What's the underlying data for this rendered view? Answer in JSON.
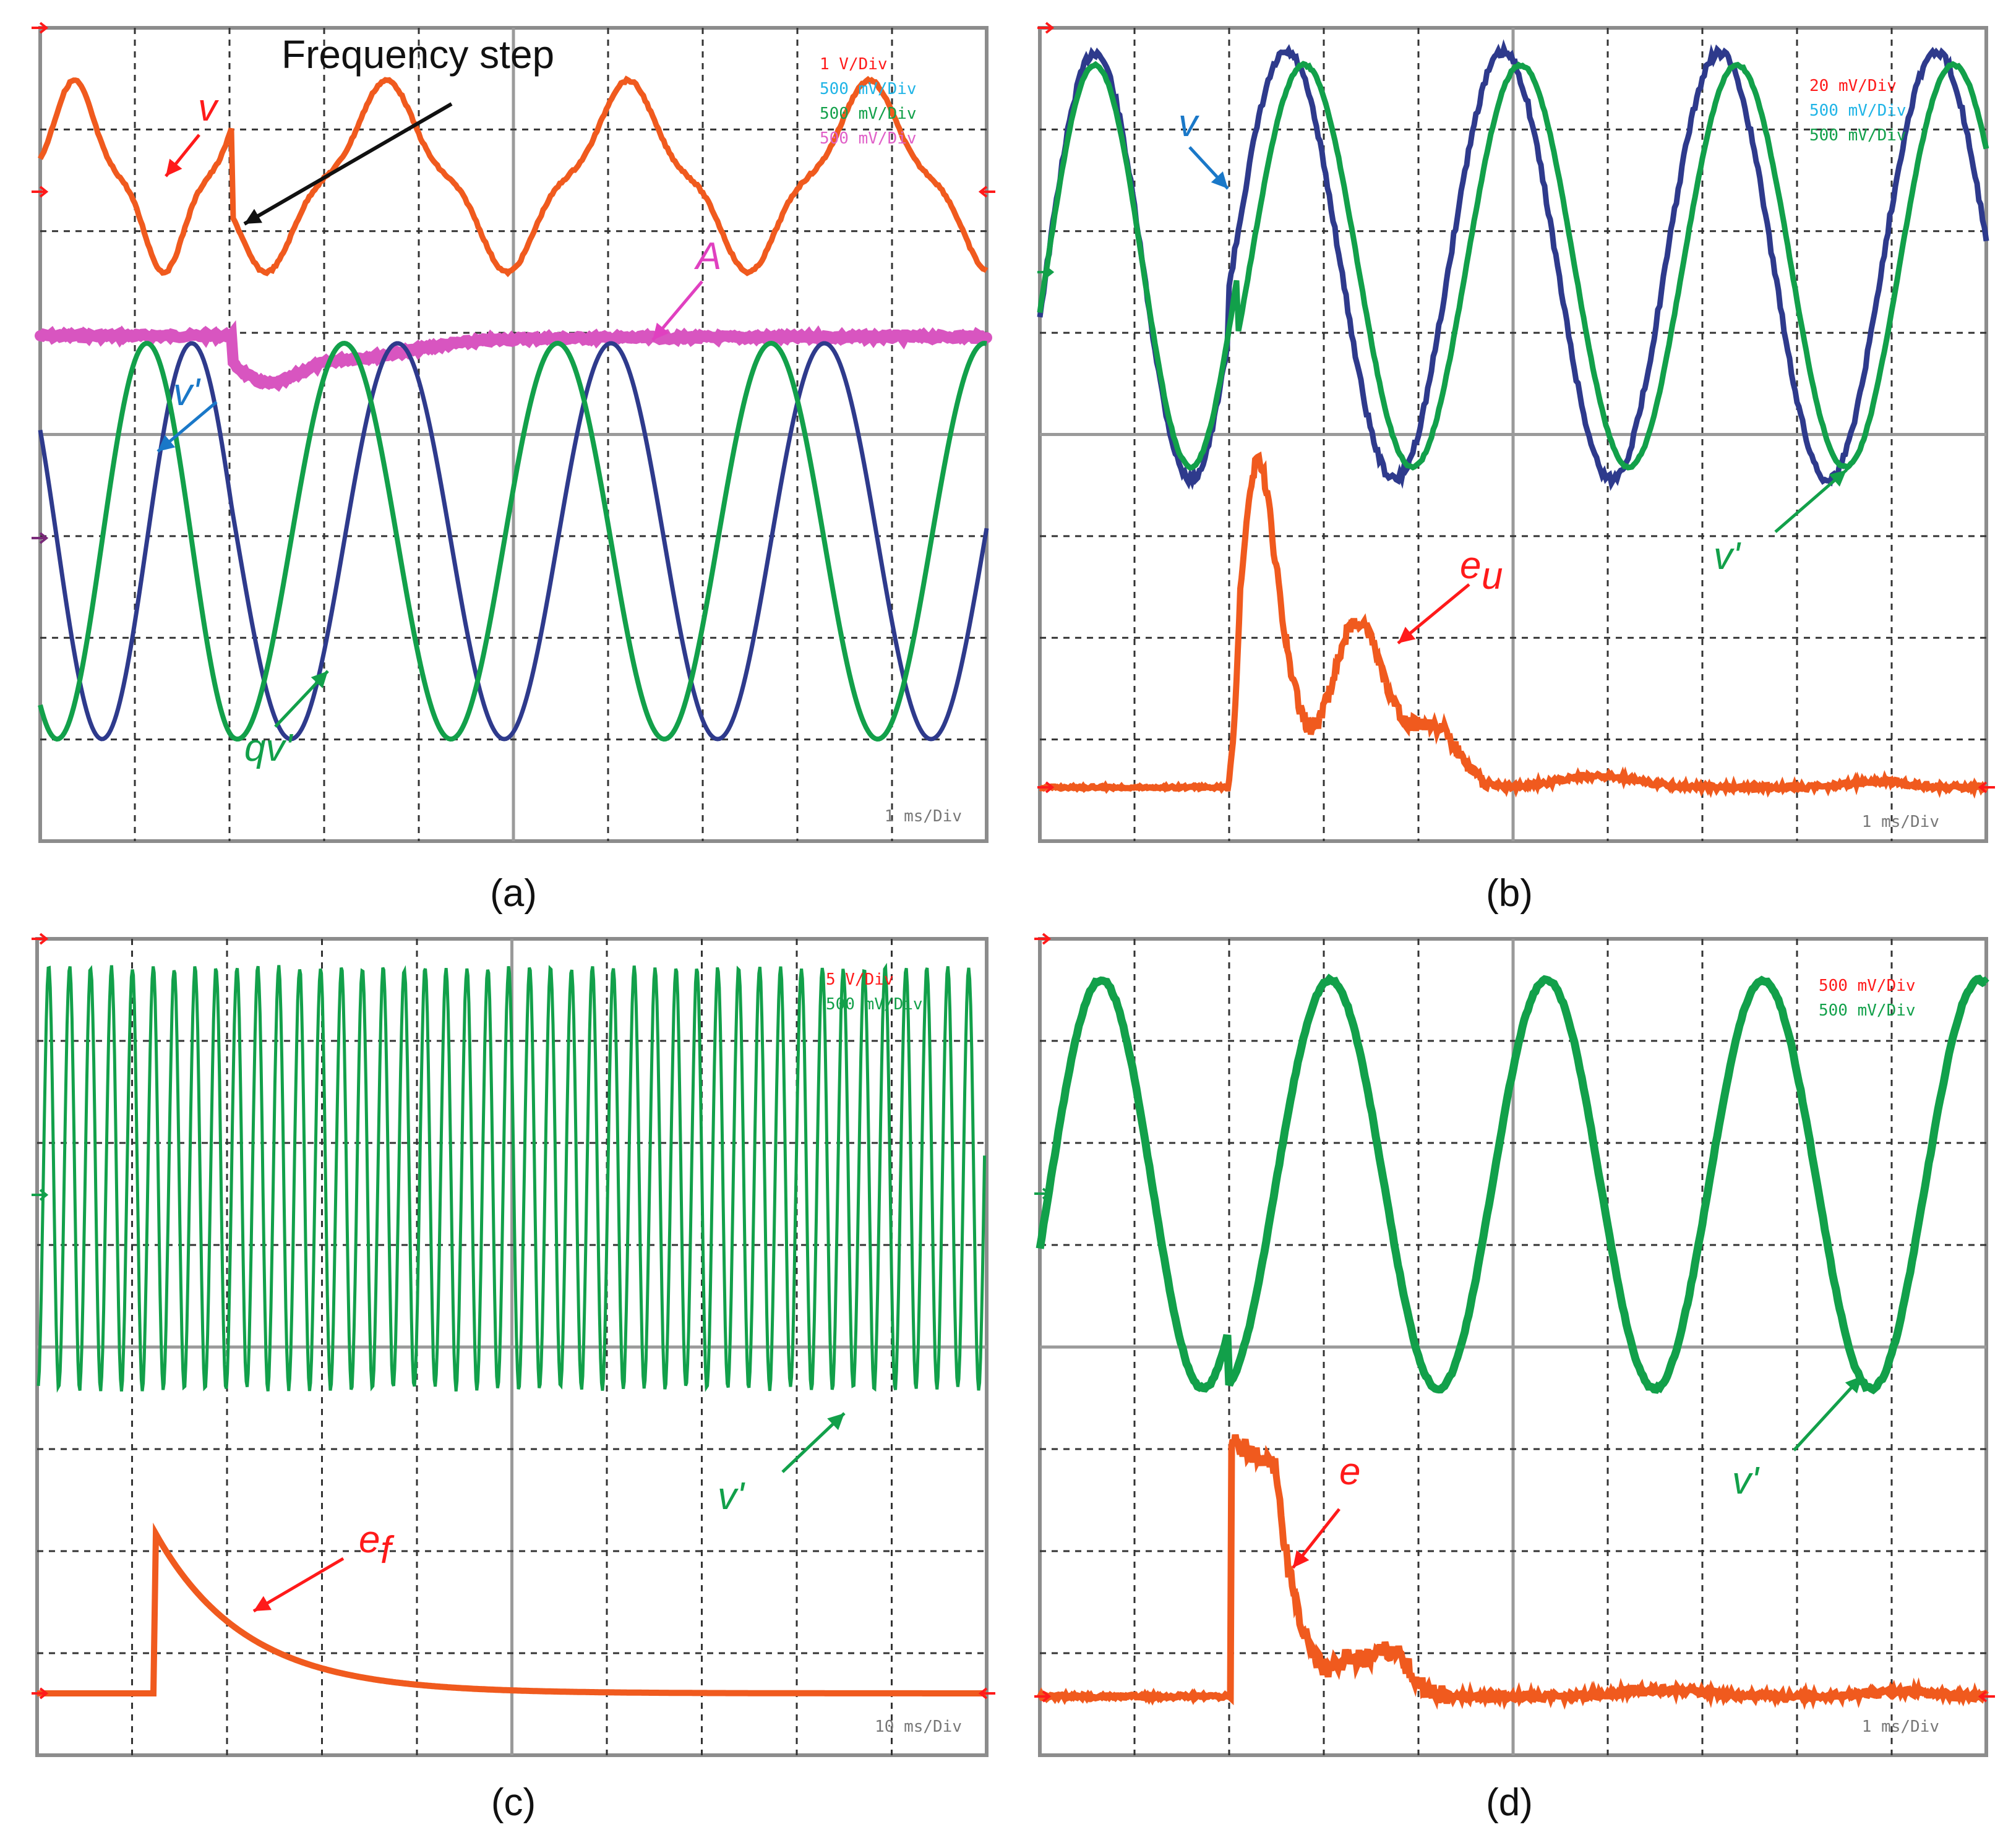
{
  "colors": {
    "red": "#ff1a1a",
    "orange": "#f05a1e",
    "blue": "#2e3a8c",
    "green": "#12a04a",
    "pink": "#d855c0",
    "cyan": "#1fb4e6",
    "grid": "#333333",
    "frame": "#8c8c8c"
  },
  "panels": [
    {
      "caption": "(a)",
      "timebase": "1 ms/Div",
      "scales": [
        {
          "text": "1 V/Div",
          "color": "#ff1a1a"
        },
        {
          "text": "500 mV/Div",
          "color": "#1fb4e6"
        },
        {
          "text": "500 mV/Div",
          "color": "#12a04a"
        },
        {
          "text": "500 mV/Div",
          "color": "#e060c8"
        }
      ],
      "annotation": "Frequency step",
      "labels": [
        {
          "text": "v",
          "color": "#ff1a1a"
        },
        {
          "text": "v'",
          "color": "#1a78c8"
        },
        {
          "text": "qv'",
          "color": "#12a04a"
        },
        {
          "text": "A",
          "color": "#e040c0"
        }
      ]
    },
    {
      "caption": "(b)",
      "timebase": "1 ms/Div",
      "scales": [
        {
          "text": "20 mV/Div",
          "color": "#ff1a1a"
        },
        {
          "text": "500 mV/Div",
          "color": "#1fb4e6"
        },
        {
          "text": "500 mV/Div",
          "color": "#12a04a"
        }
      ],
      "labels": [
        {
          "text": "v",
          "color": "#1a78c8"
        },
        {
          "text": "e",
          "sub": "u",
          "color": "#ff1a1a"
        },
        {
          "text": "v'",
          "color": "#12a04a"
        }
      ]
    },
    {
      "caption": "(c)",
      "timebase": "10 ms/Div",
      "scales": [
        {
          "text": "5 V/Div",
          "color": "#ff1a1a"
        },
        {
          "text": "500 mV/Div",
          "color": "#12a04a"
        }
      ],
      "labels": [
        {
          "text": "e",
          "sub": "f",
          "color": "#ff1a1a"
        },
        {
          "text": "v'",
          "color": "#12a04a"
        }
      ]
    },
    {
      "caption": "(d)",
      "timebase": "1 ms/Div",
      "scales": [
        {
          "text": "500 mV/Div",
          "color": "#ff1a1a"
        },
        {
          "text": "500 mV/Div",
          "color": "#12a04a"
        }
      ],
      "labels": [
        {
          "text": "e",
          "color": "#ff1a1a"
        },
        {
          "text": "v'",
          "color": "#12a04a"
        }
      ]
    }
  ],
  "chart_data": [
    {
      "type": "line",
      "panel": "(a)",
      "x_unit": "ms",
      "step_time_ms": 2.0,
      "series": [
        {
          "name": "v",
          "period_ms_before": 1.75,
          "period_ms_after": 2.5,
          "color": "#f05a1e"
        },
        {
          "name": "v'",
          "period_ms_before": 1.75,
          "period_ms_after": 2.2,
          "color": "#2e3a8c"
        },
        {
          "name": "qv'",
          "period_ms_before": 1.75,
          "period_ms_after": 2.2,
          "color": "#12a04a"
        },
        {
          "name": "A",
          "dip_time_ms": 2.3,
          "color": "#d855c0"
        }
      ]
    },
    {
      "type": "line",
      "panel": "(b)",
      "x_unit": "ms",
      "series": [
        {
          "name": "v",
          "period_ms": 2.4,
          "color": "#2e3a8c"
        },
        {
          "name": "v'",
          "period_ms": 2.4,
          "color": "#12a04a"
        },
        {
          "name": "e_u",
          "peak_time_ms": 2.3,
          "secondary_peak_ms": 3.3,
          "color": "#f05a1e"
        }
      ]
    },
    {
      "type": "line",
      "panel": "(c)",
      "x_unit": "ms",
      "series": [
        {
          "name": "v'",
          "cycles_visible": 45,
          "color": "#12a04a"
        },
        {
          "name": "e_f",
          "step_time_ms": 12,
          "decay_tau_ms": 12,
          "color": "#f05a1e"
        }
      ]
    },
    {
      "type": "line",
      "panel": "(d)",
      "x_unit": "ms",
      "series": [
        {
          "name": "v'",
          "period_ms": 2.35,
          "color": "#12a04a"
        },
        {
          "name": "e",
          "step_time_ms": 2.0,
          "secondary_peak_ms": 3.7,
          "color": "#f05a1e"
        }
      ]
    }
  ]
}
